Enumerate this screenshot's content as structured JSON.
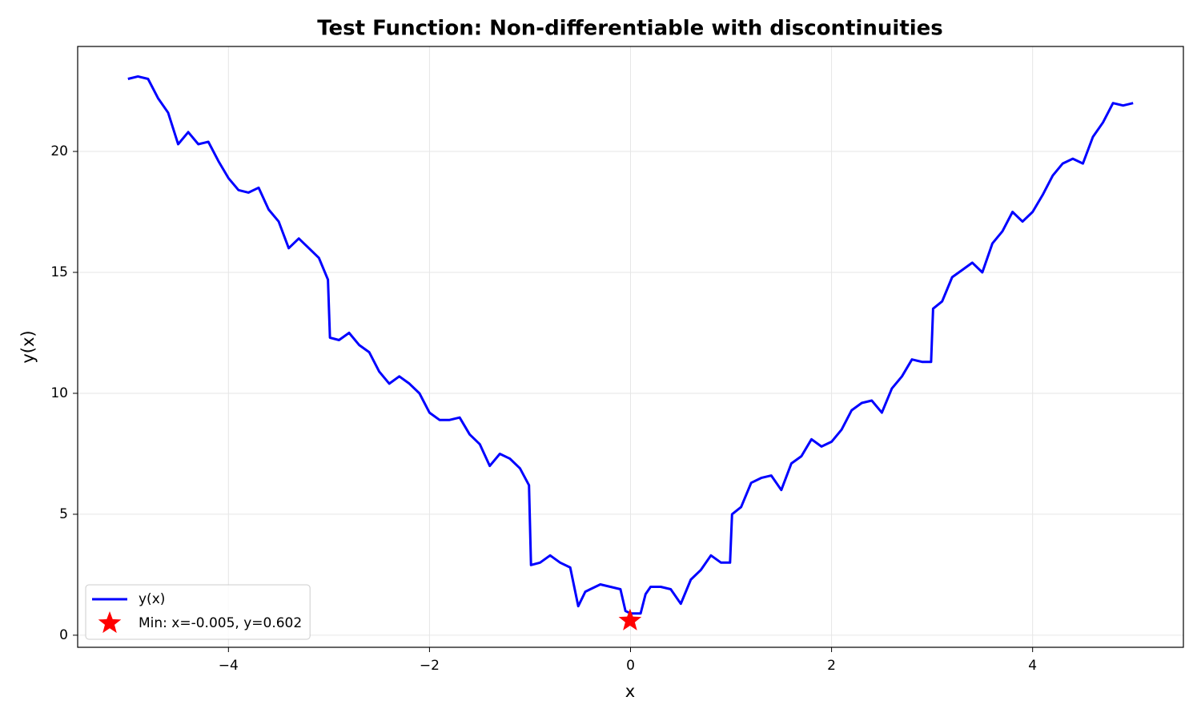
{
  "chart_data": {
    "type": "line",
    "title": "Test Function: Non-differentiable with discontinuities",
    "xlabel": "x",
    "ylabel": "y(x)",
    "xlim": [
      -5.5,
      5.5
    ],
    "ylim": [
      -0.5,
      24.34
    ],
    "xticks": [
      {
        "value": -4,
        "label": "−4"
      },
      {
        "value": -2,
        "label": "−2"
      },
      0,
      2,
      4
    ],
    "yticks": [
      0,
      5,
      10,
      15,
      20
    ],
    "grid": true,
    "legend": "lower left",
    "series": [
      {
        "name": "y(x)",
        "color": "#0000ff",
        "x": [
          -5.0,
          -4.9,
          -4.8,
          -4.7,
          -4.6,
          -4.5,
          -4.4,
          -4.3,
          -4.2,
          -4.1,
          -4.0,
          -3.9,
          -3.8,
          -3.7,
          -3.6,
          -3.5,
          -3.4,
          -3.3,
          -3.2,
          -3.1,
          -3.01,
          -2.99,
          -2.9,
          -2.8,
          -2.7,
          -2.6,
          -2.5,
          -2.4,
          -2.3,
          -2.2,
          -2.1,
          -2.0,
          -1.9,
          -1.8,
          -1.7,
          -1.6,
          -1.5,
          -1.4,
          -1.3,
          -1.2,
          -1.1,
          -1.01,
          -0.99,
          -0.9,
          -0.8,
          -0.7,
          -0.6,
          -0.52,
          -0.45,
          -0.4,
          -0.3,
          -0.2,
          -0.1,
          -0.05,
          0.0,
          0.1,
          0.15,
          0.2,
          0.3,
          0.4,
          0.5,
          0.6,
          0.7,
          0.8,
          0.9,
          0.99,
          1.01,
          1.1,
          1.2,
          1.3,
          1.4,
          1.5,
          1.6,
          1.7,
          1.8,
          1.9,
          2.0,
          2.1,
          2.2,
          2.3,
          2.4,
          2.5,
          2.6,
          2.7,
          2.8,
          2.9,
          2.99,
          3.01,
          3.1,
          3.2,
          3.3,
          3.4,
          3.5,
          3.6,
          3.7,
          3.8,
          3.9,
          4.0,
          4.1,
          4.2,
          4.3,
          4.4,
          4.5,
          4.6,
          4.7,
          4.8,
          4.9,
          5.0
        ],
        "values": [
          23.0,
          23.1,
          23.0,
          22.2,
          21.6,
          20.3,
          20.8,
          20.3,
          20.4,
          19.6,
          18.9,
          18.4,
          18.3,
          18.5,
          17.6,
          17.1,
          16.0,
          16.4,
          16.0,
          15.6,
          14.7,
          12.3,
          12.2,
          12.5,
          12.0,
          11.7,
          10.9,
          10.4,
          10.7,
          10.4,
          10.0,
          9.2,
          8.9,
          8.9,
          9.0,
          8.3,
          7.9,
          7.0,
          7.5,
          7.3,
          6.9,
          6.2,
          2.9,
          3.0,
          3.3,
          3.0,
          2.8,
          1.2,
          1.8,
          1.9,
          2.1,
          2.0,
          1.9,
          1.0,
          0.9,
          0.9,
          1.7,
          2.0,
          2.0,
          1.9,
          1.3,
          2.3,
          2.7,
          3.3,
          3.0,
          3.0,
          5.0,
          5.3,
          6.3,
          6.5,
          6.6,
          6.0,
          7.1,
          7.4,
          8.1,
          7.8,
          8.0,
          8.5,
          9.3,
          9.6,
          9.7,
          9.2,
          10.2,
          10.7,
          11.4,
          11.3,
          11.3,
          13.5,
          13.8,
          14.8,
          15.1,
          15.4,
          15.0,
          16.2,
          16.7,
          17.5,
          17.1,
          17.5,
          18.2,
          19.0,
          19.5,
          19.7,
          19.5,
          20.6,
          21.2,
          22.0,
          21.9,
          22.0
        ]
      }
    ],
    "markers": [
      {
        "name": "Min: x=-0.005, y=0.602",
        "x": -0.005,
        "y": 0.602,
        "color": "#ff0000"
      }
    ]
  }
}
